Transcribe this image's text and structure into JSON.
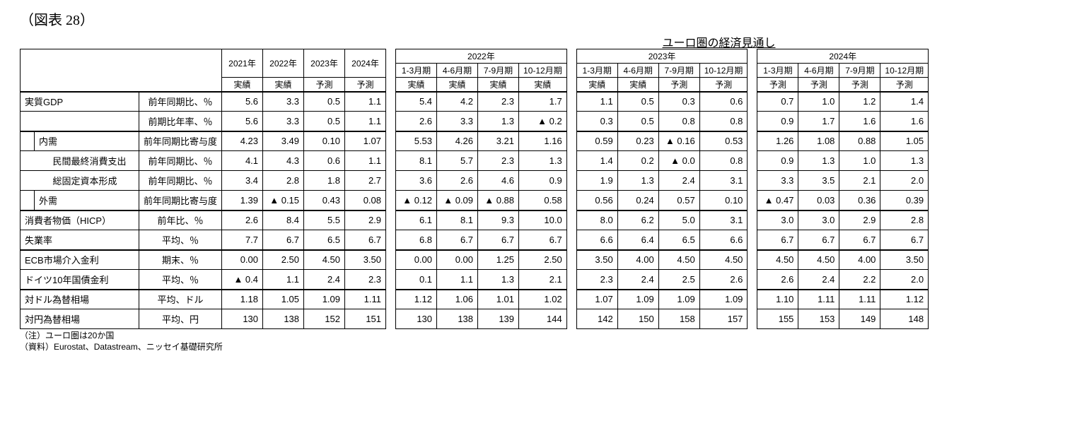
{
  "figLabel": "（図表 28）",
  "title": "ユーロ圏の経済見通し",
  "labelsWidth": {
    "c1": 20,
    "c2": 20,
    "c3": 128,
    "unit": 115
  },
  "years": [
    "2021年",
    "2022年",
    "2023年",
    "2024年"
  ],
  "yearTypes": [
    "実績",
    "実績",
    "予測",
    "予測"
  ],
  "qGroups": [
    {
      "year": "2022年",
      "quarters": [
        "1-3月期",
        "4-6月期",
        "7-9月期",
        "10-12月期"
      ],
      "types": [
        "実績",
        "実績",
        "実績",
        "実績"
      ]
    },
    {
      "year": "2023年",
      "quarters": [
        "1-3月期",
        "4-6月期",
        "7-9月期",
        "10-12月期"
      ],
      "types": [
        "実績",
        "実績",
        "予測",
        "予測"
      ]
    },
    {
      "year": "2024年",
      "quarters": [
        "1-3月期",
        "4-6月期",
        "7-9月期",
        "10-12月期"
      ],
      "types": [
        "予測",
        "予測",
        "予測",
        "予測"
      ]
    }
  ],
  "rows": [
    {
      "indent": 0,
      "label": "実質GDP",
      "unit": "前年同期比、％",
      "sect": true,
      "y": [
        "5.6",
        "3.3",
        "0.5",
        "1.1"
      ],
      "q": [
        [
          "5.4",
          "4.2",
          "2.3",
          "1.7"
        ],
        [
          "1.1",
          "0.5",
          "0.3",
          "0.6"
        ],
        [
          "0.7",
          "1.0",
          "1.2",
          "1.4"
        ]
      ]
    },
    {
      "indent": 0,
      "label": "",
      "unit": "前期比年率、％",
      "y": [
        "5.6",
        "3.3",
        "0.5",
        "1.1"
      ],
      "q": [
        [
          "2.6",
          "3.3",
          "1.3",
          "▲ 0.2"
        ],
        [
          "0.3",
          "0.5",
          "0.8",
          "0.8"
        ],
        [
          "0.9",
          "1.7",
          "1.6",
          "1.6"
        ]
      ]
    },
    {
      "indent": 1,
      "label": "内需",
      "unit": "前年同期比寄与度",
      "sect": true,
      "y": [
        "4.23",
        "3.49",
        "0.10",
        "1.07"
      ],
      "q": [
        [
          "5.53",
          "4.26",
          "3.21",
          "1.16"
        ],
        [
          "0.59",
          "0.23",
          "▲ 0.16",
          "0.53"
        ],
        [
          "1.26",
          "1.08",
          "0.88",
          "1.05"
        ]
      ]
    },
    {
      "indent": 2,
      "label": "民間最終消費支出",
      "unit": "前年同期比、％",
      "y": [
        "4.1",
        "4.3",
        "0.6",
        "1.1"
      ],
      "q": [
        [
          "8.1",
          "5.7",
          "2.3",
          "1.3"
        ],
        [
          "1.4",
          "0.2",
          "▲ 0.0",
          "0.8"
        ],
        [
          "0.9",
          "1.3",
          "1.0",
          "1.3"
        ]
      ]
    },
    {
      "indent": 2,
      "label": "総固定資本形成",
      "unit": "前年同期比、％",
      "y": [
        "3.4",
        "2.8",
        "1.8",
        "2.7"
      ],
      "q": [
        [
          "3.6",
          "2.6",
          "4.6",
          "0.9"
        ],
        [
          "1.9",
          "1.3",
          "2.4",
          "3.1"
        ],
        [
          "3.3",
          "3.5",
          "2.1",
          "2.0"
        ]
      ]
    },
    {
      "indent": 1,
      "label": "外需",
      "unit": "前年同期比寄与度",
      "y": [
        "1.39",
        "▲ 0.15",
        "0.43",
        "0.08"
      ],
      "q": [
        [
          "▲ 0.12",
          "▲ 0.09",
          "▲ 0.88",
          "0.58"
        ],
        [
          "0.56",
          "0.24",
          "0.57",
          "0.10"
        ],
        [
          "▲ 0.47",
          "0.03",
          "0.36",
          "0.39"
        ]
      ]
    },
    {
      "indent": 0,
      "label": "消費者物価（HICP）",
      "unit": "前年比、％",
      "sect": true,
      "y": [
        "2.6",
        "8.4",
        "5.5",
        "2.9"
      ],
      "q": [
        [
          "6.1",
          "8.1",
          "9.3",
          "10.0"
        ],
        [
          "8.0",
          "6.2",
          "5.0",
          "3.1"
        ],
        [
          "3.0",
          "3.0",
          "2.9",
          "2.8"
        ]
      ]
    },
    {
      "indent": 0,
      "label": "失業率",
      "unit": "平均、％",
      "y": [
        "7.7",
        "6.7",
        "6.5",
        "6.7"
      ],
      "q": [
        [
          "6.8",
          "6.7",
          "6.7",
          "6.7"
        ],
        [
          "6.6",
          "6.4",
          "6.5",
          "6.6"
        ],
        [
          "6.7",
          "6.7",
          "6.7",
          "6.7"
        ]
      ]
    },
    {
      "indent": 0,
      "label": "ECB市場介入金利",
      "unit": "期末、％",
      "sect": true,
      "y": [
        "0.00",
        "2.50",
        "4.50",
        "3.50"
      ],
      "q": [
        [
          "0.00",
          "0.00",
          "1.25",
          "2.50"
        ],
        [
          "3.50",
          "4.00",
          "4.50",
          "4.50"
        ],
        [
          "4.50",
          "4.50",
          "4.00",
          "3.50"
        ]
      ]
    },
    {
      "indent": 0,
      "label": "ドイツ10年国債金利",
      "unit": "平均、％",
      "y": [
        "▲ 0.4",
        "1.1",
        "2.4",
        "2.3"
      ],
      "q": [
        [
          "0.1",
          "1.1",
          "1.3",
          "2.1"
        ],
        [
          "2.3",
          "2.4",
          "2.5",
          "2.6"
        ],
        [
          "2.6",
          "2.4",
          "2.2",
          "2.0"
        ]
      ]
    },
    {
      "indent": 0,
      "label": "対ドル為替相場",
      "unit": "平均、ドル",
      "sect": true,
      "y": [
        "1.18",
        "1.05",
        "1.09",
        "1.11"
      ],
      "q": [
        [
          "1.12",
          "1.06",
          "1.01",
          "1.02"
        ],
        [
          "1.07",
          "1.09",
          "1.09",
          "1.09"
        ],
        [
          "1.10",
          "1.11",
          "1.11",
          "1.12"
        ]
      ]
    },
    {
      "indent": 0,
      "label": "対円為替相場",
      "unit": "平均、円",
      "y": [
        "130",
        "138",
        "152",
        "151"
      ],
      "q": [
        [
          "130",
          "138",
          "139",
          "144"
        ],
        [
          "142",
          "150",
          "158",
          "157"
        ],
        [
          "155",
          "153",
          "149",
          "148"
        ]
      ]
    }
  ],
  "footnotes": [
    "（注）ユーロ圏は20か国",
    "（資料）Eurostat、Datastream、ニッセイ基礎研究所"
  ]
}
